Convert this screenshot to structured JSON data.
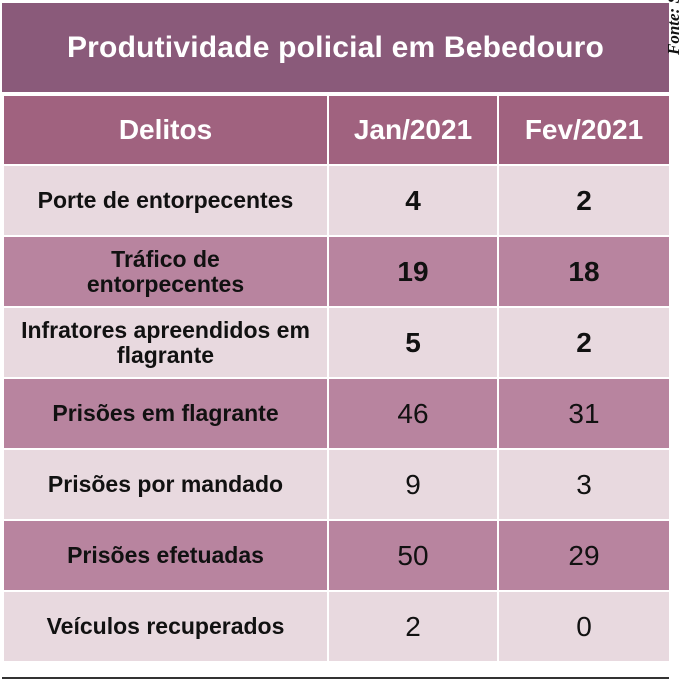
{
  "title": "Produtividade policial em Bebedouro",
  "source": "Fonte: SSP/SP",
  "colors": {
    "title_bg": "#8a5a7a",
    "header_bg": "#a0627f",
    "row_light": "#e8d9df",
    "row_dark": "#b8849f"
  },
  "table": {
    "headers": [
      "Delitos",
      "Jan/2021",
      "Fev/2021"
    ],
    "rows": [
      {
        "label": "Porte de entorpecentes",
        "jan": "4",
        "fev": "2"
      },
      {
        "label": "Tráfico de entorpecentes",
        "jan": "19",
        "fev": "18"
      },
      {
        "label": "Infratores apreendidos em flagrante",
        "jan": "5",
        "fev": "2"
      },
      {
        "label": "Prisões em flagrante",
        "jan": "46",
        "fev": "31"
      },
      {
        "label": "Prisões por mandado",
        "jan": "9",
        "fev": "3"
      },
      {
        "label": "Prisões efetuadas",
        "jan": "50",
        "fev": "29"
      },
      {
        "label": "Veículos recuperados",
        "jan": "2",
        "fev": "0"
      }
    ]
  }
}
